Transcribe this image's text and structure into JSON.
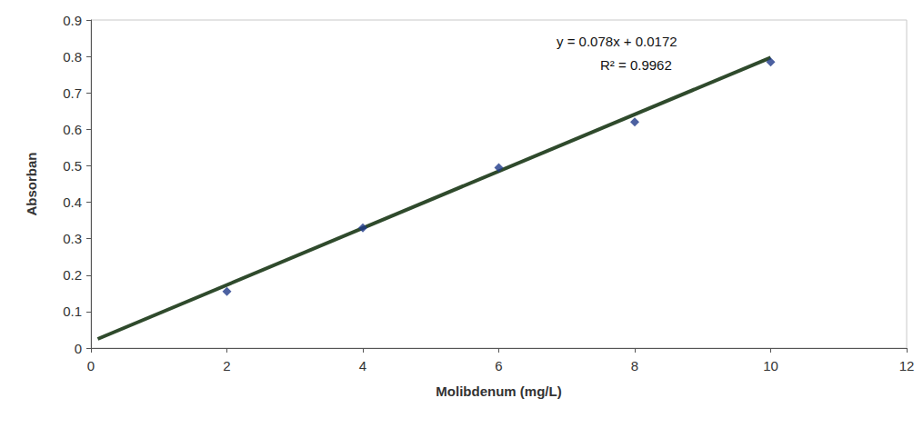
{
  "chart_data": {
    "type": "scatter",
    "x_label": "Molibdenum (mg/L)",
    "y_label": "Absorban",
    "annotations": [
      "y = 0.078x + 0.0172",
      "R² = 0.9962"
    ],
    "xlim": [
      0,
      12
    ],
    "xticks": [
      0,
      2,
      4,
      6,
      8,
      10,
      12
    ],
    "ylim": [
      0,
      0.9
    ],
    "yticks": [
      0,
      0.1,
      0.2,
      0.3,
      0.4,
      0.5,
      0.6,
      0.7,
      0.8,
      0.9
    ],
    "grid": false,
    "series": [
      {
        "type": "scatter",
        "color": "#1f3a8a",
        "marker": "diamond",
        "x": [
          2,
          4,
          6,
          8,
          10
        ],
        "values": [
          0.155,
          0.33,
          0.495,
          0.62,
          0.785
        ]
      },
      {
        "type": "line",
        "color": "#2f4a2c",
        "line_style": "solid",
        "x": [
          0.1,
          10
        ],
        "values": [
          0.025,
          0.797
        ]
      }
    ]
  }
}
